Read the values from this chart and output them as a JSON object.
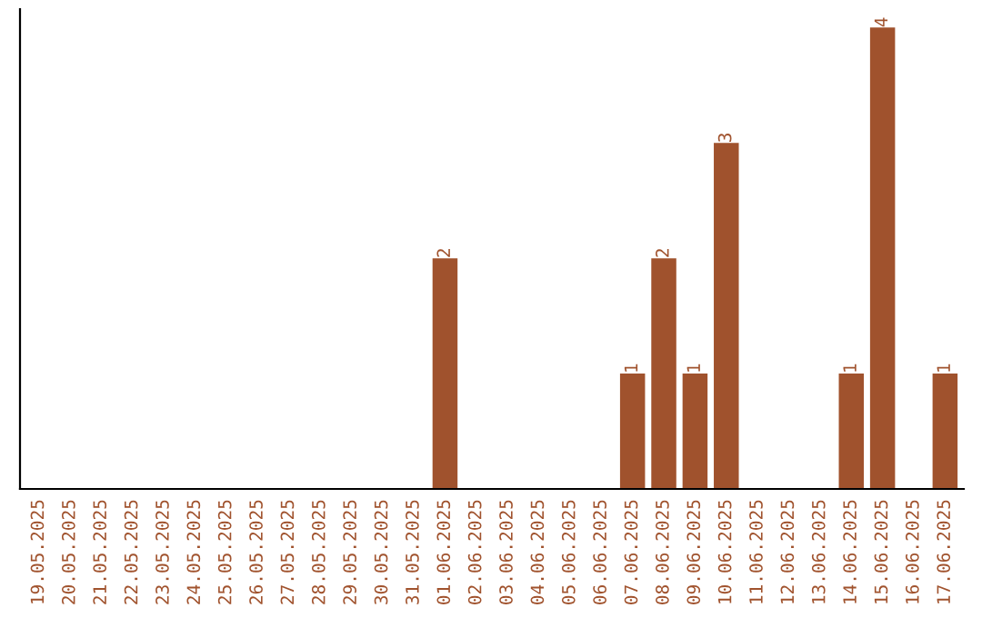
{
  "chart_data": {
    "type": "bar",
    "categories": [
      "19.05.2025",
      "20.05.2025",
      "21.05.2025",
      "22.05.2025",
      "23.05.2025",
      "24.05.2025",
      "25.05.2025",
      "26.05.2025",
      "27.05.2025",
      "28.05.2025",
      "29.05.2025",
      "30.05.2025",
      "31.05.2025",
      "01.06.2025",
      "02.06.2025",
      "03.06.2025",
      "04.06.2025",
      "05.06.2025",
      "06.06.2025",
      "07.06.2025",
      "08.06.2025",
      "09.06.2025",
      "10.06.2025",
      "11.06.2025",
      "12.06.2025",
      "13.06.2025",
      "14.06.2025",
      "15.06.2025",
      "16.06.2025",
      "17.06.2025"
    ],
    "series": [
      {
        "color": "#a0522d",
        "values": [
          null,
          null,
          null,
          null,
          null,
          null,
          null,
          null,
          null,
          null,
          null,
          null,
          null,
          2,
          null,
          null,
          null,
          null,
          null,
          1,
          2,
          1,
          3,
          null,
          null,
          null,
          1,
          4,
          null,
          1
        ]
      }
    ],
    "data_labels": true,
    "tick_labels": "x",
    "grid": false,
    "legend": false
  }
}
